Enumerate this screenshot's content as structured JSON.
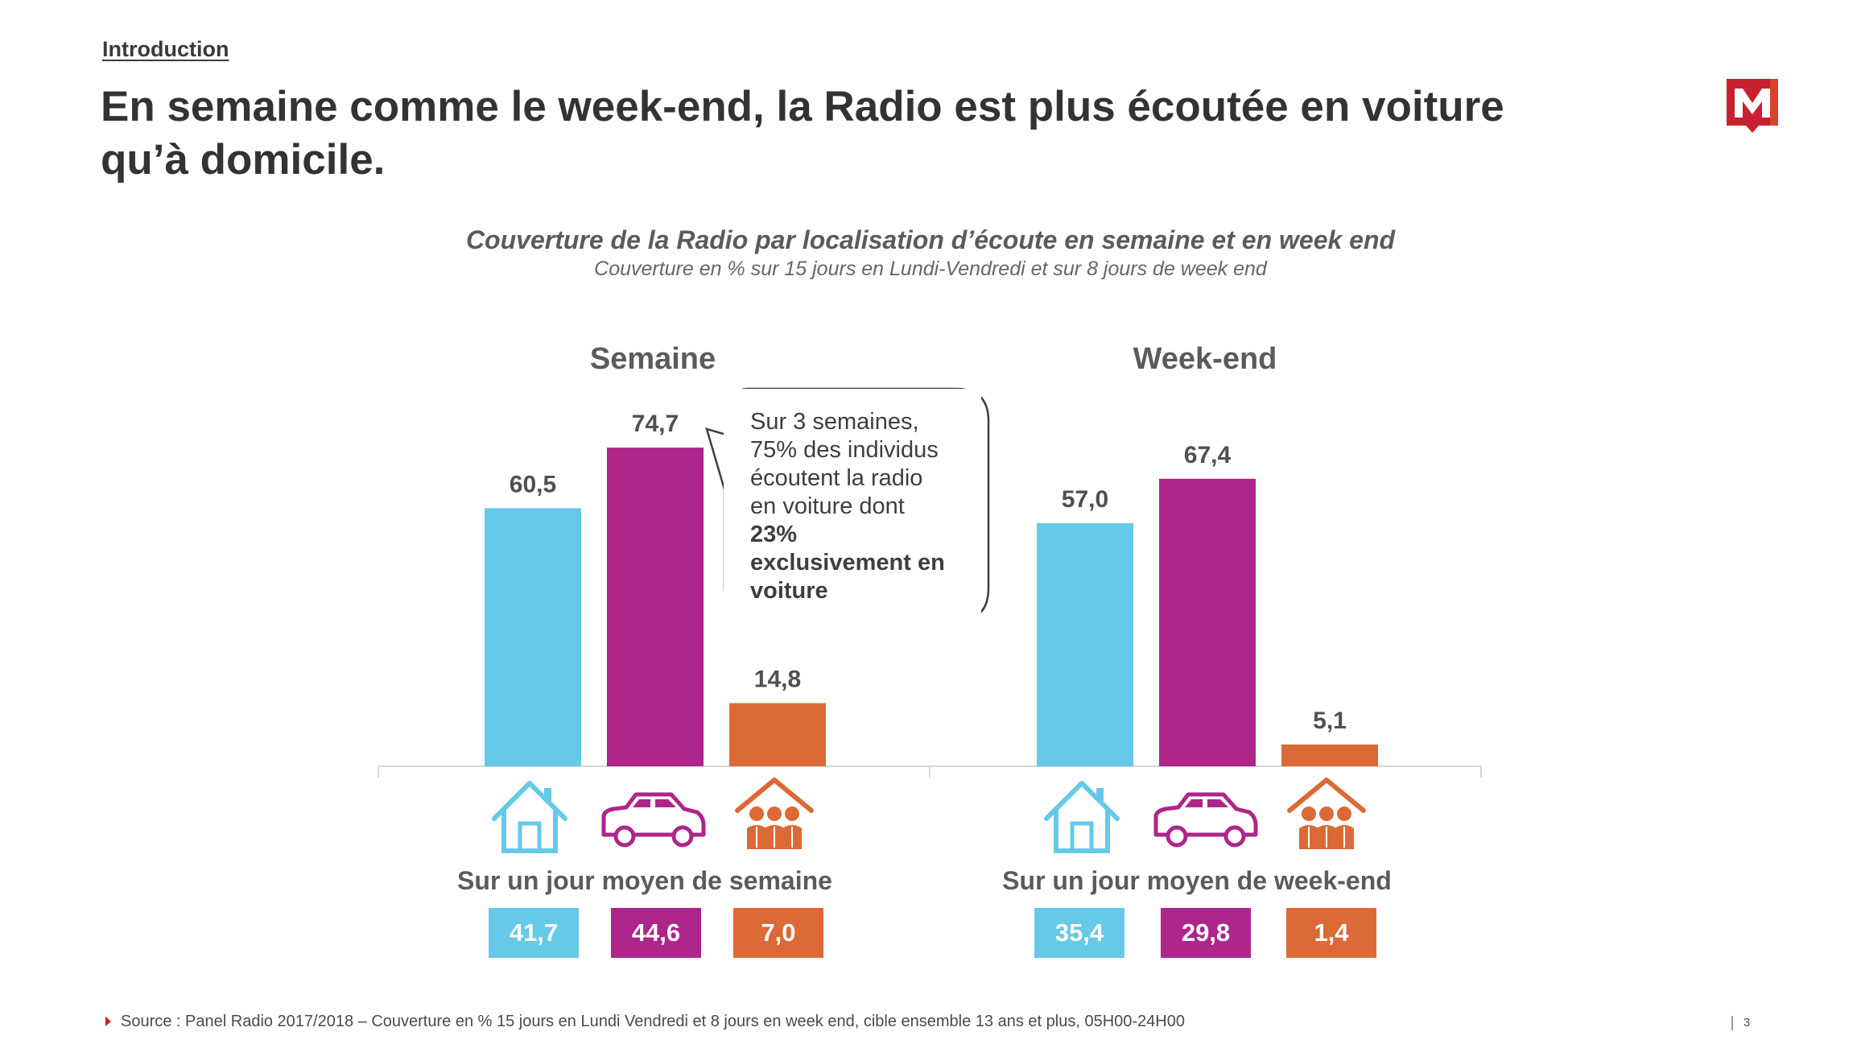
{
  "header": {
    "section": "Introduction",
    "title": "En semaine comme le week-end, la Radio est plus écoutée en voiture qu’à domicile."
  },
  "logo": {
    "letter": "M",
    "color": "#c8202e",
    "accent": "#e2652a"
  },
  "colors": {
    "home": "#66c9e7",
    "car": "#ae258b",
    "other": "#dc6a36",
    "axis": "#d6d6d6",
    "label": "#505050"
  },
  "chart_data": {
    "type": "bar",
    "title": "Couverture de la Radio par localisation d’écoute en semaine et en week end",
    "subtitle": "Couverture en % sur 15 jours en Lundi-Vendredi et sur 8 jours de week end",
    "categories": [
      "Domicile",
      "Voiture",
      "Autres lieux"
    ],
    "icons": [
      "house-icon",
      "car-icon",
      "people-house-icon"
    ],
    "ylim": [
      0,
      80
    ],
    "groups": [
      {
        "name": "Semaine",
        "values": [
          60.5,
          74.7,
          14.8
        ],
        "labels": [
          "60,5",
          "74,7",
          "14,8"
        ],
        "day_title": "Sur un jour moyen de semaine",
        "day_values": [
          41.7,
          44.6,
          7.0
        ],
        "day_labels": [
          "41,7",
          "44,6",
          "7,0"
        ]
      },
      {
        "name": "Week-end",
        "values": [
          57.0,
          67.4,
          5.1
        ],
        "labels": [
          "57,0",
          "67,4",
          "5,1"
        ],
        "day_title": "Sur un jour moyen de week-end",
        "day_values": [
          35.4,
          29.8,
          1.4
        ],
        "day_labels": [
          "35,4",
          "29,8",
          "1,4"
        ]
      }
    ]
  },
  "callout": {
    "line1": "Sur 3 semaines,",
    "line2": "75% des individus",
    "line3": "écoutent la radio",
    "line4": "en voiture dont",
    "bold1": "23%",
    "bold2": "exclusivement en",
    "bold3": "voiture"
  },
  "footer": {
    "source": "Source : Panel Radio 2017/2018 – Couverture en % 15 jours en Lundi Vendredi et 8 jours en week end, cible ensemble 13 ans et plus, 05H00-24H00",
    "page": "3"
  }
}
